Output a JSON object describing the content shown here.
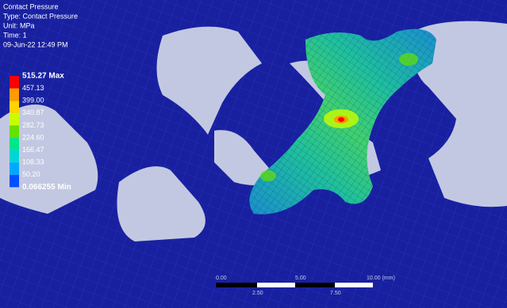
{
  "header": {
    "title": "Contact Pressure",
    "lines": [
      "Type: Contact Pressure",
      "Unit: MPa",
      "Time: 1",
      "09-Jun-22 12:49 PM"
    ]
  },
  "legend": {
    "labels": [
      "515.27 Max",
      "457.13",
      "399.00",
      "340.87",
      "282.73",
      "224.60",
      "166.47",
      "108.33",
      "50.20",
      "0.066255 Min"
    ],
    "colors": [
      "#ff0000",
      "#ff9a00",
      "#ffd200",
      "#c8ff00",
      "#66e000",
      "#00e68a",
      "#00d6d6",
      "#00a8ff",
      "#0050ff"
    ]
  },
  "scale_bar": {
    "top_labels": [
      "0.00",
      "5.00",
      "10.00 (mm)"
    ],
    "bottom_labels": [
      "2.50",
      "7.50"
    ]
  }
}
